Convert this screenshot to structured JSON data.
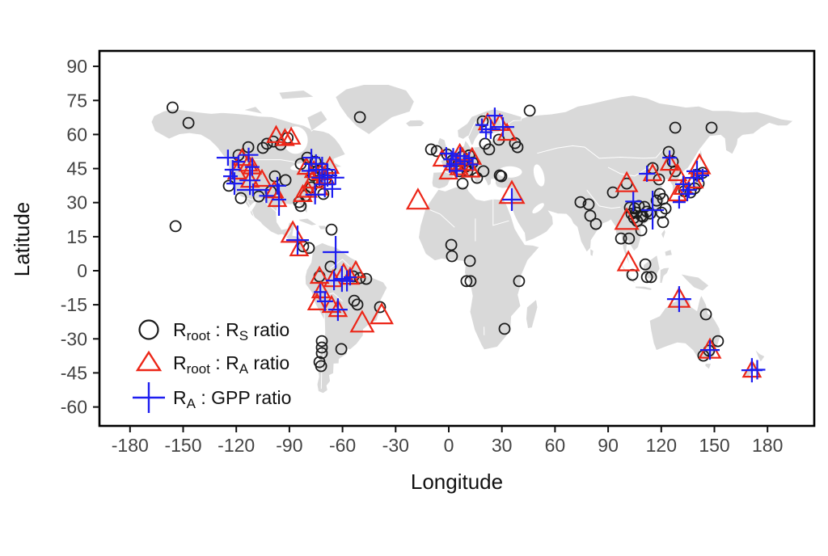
{
  "figure": {
    "background": "#ffffff",
    "land_color": "#d9d9d9",
    "coast_color": "#ffffff",
    "frame_color": "#000000"
  },
  "chart_data": {
    "type": "scatter",
    "subtype": "map-scatter",
    "title": "",
    "xlabel": "Longitude",
    "ylabel": "Latitude",
    "xlim": [
      -197,
      206
    ],
    "ylim": [
      -68.5,
      97
    ],
    "xticks": [
      -180,
      -150,
      -120,
      -90,
      -60,
      -30,
      0,
      30,
      60,
      90,
      120,
      150,
      180
    ],
    "yticks": [
      90,
      75,
      60,
      45,
      30,
      15,
      0,
      -15,
      -30,
      -45,
      -60
    ],
    "grid": false,
    "legend_position": "inside-bottom-left",
    "basemap": "world-continents",
    "series": [
      {
        "name": "Rroot : RS ratio",
        "marker": "circle",
        "color": "#1c1c1c",
        "label_parts": [
          {
            "t": "R"
          },
          {
            "t": "root",
            "sub": true
          },
          {
            "t": " : R"
          },
          {
            "t": "S",
            "sub": true
          },
          {
            "t": " ratio"
          }
        ],
        "points": [
          [
            -156,
            71.9
          ],
          [
            -147,
            65.1
          ],
          [
            -154.3,
            19.6
          ],
          [
            -50.2,
            67.6
          ],
          [
            45.7,
            70.5
          ],
          [
            127.9,
            63
          ],
          [
            148.4,
            63
          ],
          [
            -113.2,
            54.4
          ],
          [
            -105,
            54.1
          ],
          [
            -99.1,
            56.9
          ],
          [
            -102.7,
            55.9
          ],
          [
            -91,
            58.5
          ],
          [
            -118.7,
            50.9
          ],
          [
            -95,
            55.5
          ],
          [
            -124.2,
            37.4
          ],
          [
            -117.4,
            32
          ],
          [
            -107.3,
            32.7
          ],
          [
            -100.5,
            34.9
          ],
          [
            -98.2,
            41.6
          ],
          [
            -92.2,
            39.9
          ],
          [
            -84.5,
            30.2
          ],
          [
            -83.6,
            28.5
          ],
          [
            -83.6,
            47
          ],
          [
            -79.9,
            49.8
          ],
          [
            -75.3,
            48
          ],
          [
            -71.7,
            45.2
          ],
          [
            -68.5,
            42.7
          ],
          [
            -76.7,
            42
          ],
          [
            -73.1,
            39.1
          ],
          [
            -77.6,
            36.7
          ],
          [
            -70.8,
            33.8
          ],
          [
            -80.8,
            33.1
          ],
          [
            -74,
            44
          ],
          [
            -69.5,
            40.5
          ],
          [
            -66.2,
            18.1
          ],
          [
            -82.2,
            10.7
          ],
          [
            -79,
            10
          ],
          [
            -66.7,
            1.8
          ],
          [
            -73,
            -2.5
          ],
          [
            -53.9,
            -2.5
          ],
          [
            -50.2,
            -3.2
          ],
          [
            -46.6,
            -3.6
          ],
          [
            -53.4,
            -13.2
          ],
          [
            -51.6,
            -14.9
          ],
          [
            -38.8,
            -16
          ],
          [
            -71.7,
            -31
          ],
          [
            -71.7,
            -33.8
          ],
          [
            -71.7,
            -36.3
          ],
          [
            -60.7,
            -34.5
          ],
          [
            -73,
            -40.2
          ],
          [
            -72.1,
            -42
          ],
          [
            1.4,
            11.4
          ],
          [
            1.8,
            6.4
          ],
          [
            11.9,
            4.3
          ],
          [
            10,
            -4.6
          ],
          [
            12.3,
            -4.6
          ],
          [
            39.7,
            -4.6
          ],
          [
            31.5,
            -25.6
          ],
          [
            -10,
            53.4
          ],
          [
            -6.8,
            52.7
          ],
          [
            -0.9,
            51.2
          ],
          [
            2,
            48.5
          ],
          [
            5.5,
            47
          ],
          [
            7.5,
            50.3
          ],
          [
            9.5,
            45.8
          ],
          [
            11.5,
            50.8
          ],
          [
            13.5,
            47.6
          ],
          [
            6,
            43.8
          ],
          [
            10.5,
            43.9
          ],
          [
            7.8,
            38.4
          ],
          [
            16,
            40.9
          ],
          [
            19.6,
            43.8
          ],
          [
            28.8,
            42
          ],
          [
            29.7,
            41.6
          ],
          [
            19.2,
            65.8
          ],
          [
            20.5,
            55.9
          ],
          [
            22.8,
            53.4
          ],
          [
            28.3,
            57.7
          ],
          [
            37.4,
            56.2
          ],
          [
            38.8,
            54.4
          ],
          [
            74.4,
            30.2
          ],
          [
            79,
            29.2
          ],
          [
            79.9,
            24.2
          ],
          [
            83.1,
            20.6
          ],
          [
            92.7,
            34.5
          ],
          [
            100.5,
            38.4
          ],
          [
            107.3,
            28.5
          ],
          [
            105,
            27.4
          ],
          [
            103.2,
            25.1
          ],
          [
            106,
            25.6
          ],
          [
            108.7,
            24.2
          ],
          [
            104.6,
            23.3
          ],
          [
            102.3,
            27.8
          ],
          [
            109.6,
            23.8
          ],
          [
            111.9,
            26
          ],
          [
            106.4,
            21.9
          ],
          [
            113.8,
            25.2
          ],
          [
            110.5,
            28.1
          ],
          [
            97.3,
            14.2
          ],
          [
            101.8,
            14.2
          ],
          [
            108.7,
            17.8
          ],
          [
            103.7,
            -1.8
          ],
          [
            111,
            2.8
          ],
          [
            111.9,
            -2.8
          ],
          [
            114.2,
            -2.8
          ],
          [
            124.2,
            52.3
          ],
          [
            126.5,
            48
          ],
          [
            127.9,
            43.8
          ],
          [
            115.1,
            45.2
          ],
          [
            118.7,
            40.2
          ],
          [
            119.2,
            33.8
          ],
          [
            121,
            31.6
          ],
          [
            117.4,
            30.9
          ],
          [
            122.4,
            27.4
          ],
          [
            120.1,
            25.6
          ],
          [
            121,
            21.4
          ],
          [
            133,
            35
          ],
          [
            136.5,
            34.5
          ],
          [
            138.8,
            36.3
          ],
          [
            141.1,
            38.4
          ],
          [
            140.2,
            42.3
          ],
          [
            143.4,
            43.1
          ],
          [
            145.2,
            -19.2
          ],
          [
            152,
            -31
          ],
          [
            143.8,
            -37.4
          ],
          [
            147,
            -35.2
          ]
        ]
      },
      {
        "name": "Rroot : RA ratio",
        "marker": "triangle",
        "color": "#ec2618",
        "label_parts": [
          {
            "t": "R"
          },
          {
            "t": "root",
            "sub": true
          },
          {
            "t": " : R"
          },
          {
            "t": "A",
            "sub": true
          },
          {
            "t": " ratio"
          }
        ],
        "points": [
          [
            -97.5,
            59.5
          ],
          [
            -92.5,
            58.2
          ],
          [
            -89,
            58.8
          ],
          [
            -116.7,
            49.4
          ],
          [
            -113.2,
            46.9
          ],
          [
            -111,
            45.7
          ],
          [
            -119.6,
            43.4
          ],
          [
            -112.3,
            39.8
          ],
          [
            -105.5,
            40.2
          ],
          [
            -98.6,
            35.2
          ],
          [
            -96.8,
            31.3
          ],
          [
            -80.4,
            45.5
          ],
          [
            -76.2,
            44.1
          ],
          [
            -72.2,
            43.1
          ],
          [
            -69.9,
            41.3
          ],
          [
            -77.2,
            39.5
          ],
          [
            -73.5,
            36.4
          ],
          [
            -67.2,
            45.9
          ],
          [
            -79.7,
            35.4
          ],
          [
            -82.4,
            33.5
          ],
          [
            -88.1,
            16.4,
            1.3
          ],
          [
            -84.5,
            9.6
          ],
          [
            -73,
            -2.5
          ],
          [
            -65.3,
            -4
          ],
          [
            -59.4,
            -1.1
          ],
          [
            -52.5,
            0
          ],
          [
            -55.7,
            -2.9
          ],
          [
            -72.1,
            -8.9
          ],
          [
            -74.4,
            -14.2
          ],
          [
            -66.2,
            -15.3
          ],
          [
            -62.6,
            -17.1
          ],
          [
            -48.9,
            -23.1,
            1.3
          ],
          [
            -37.9,
            -19.6,
            1.25
          ],
          [
            -17.4,
            30.9,
            1.25
          ],
          [
            -3.7,
            49.1
          ],
          [
            -0.2,
            43.4
          ],
          [
            2.8,
            47.4
          ],
          [
            5.8,
            45.3
          ],
          [
            7.8,
            49.8
          ],
          [
            10.6,
            47.2
          ],
          [
            6.2,
            51.6
          ],
          [
            13.2,
            49.9
          ],
          [
            12.4,
            44.3
          ],
          [
            21.9,
            65.1
          ],
          [
            28.8,
            64.8
          ],
          [
            32.9,
            60.5
          ],
          [
            35.6,
            33.8,
            1.4
          ],
          [
            100.5,
            38.4,
            1.2
          ],
          [
            100.5,
            22.1,
            1.3
          ],
          [
            101.4,
            3.6,
            1.2
          ],
          [
            124.7,
            47.3
          ],
          [
            141.6,
            46.3,
            1.2
          ],
          [
            129.2,
            42.7
          ],
          [
            132.4,
            36.7
          ],
          [
            129.2,
            33.8
          ],
          [
            138.4,
            39.5
          ],
          [
            115.1,
            42.7
          ],
          [
            130.1,
            -12.5,
            1.2
          ],
          [
            147.5,
            -34.9,
            1.2
          ],
          [
            171.2,
            -43.8
          ]
        ]
      },
      {
        "name": "RA : GPP ratio",
        "marker": "plus",
        "color": "#1d1df0",
        "label_parts": [
          {
            "t": "R"
          },
          {
            "t": "A",
            "sub": true
          },
          {
            "t": " : GPP ratio"
          }
        ],
        "points": [
          [
            -124.7,
            49.8,
            14,
            10
          ],
          [
            -122,
            44.5,
            10,
            12
          ],
          [
            -123.3,
            41.6,
            9,
            9
          ],
          [
            -121,
            38.4,
            10,
            14
          ],
          [
            -118.7,
            48,
            8,
            8
          ],
          [
            -113,
            51,
            12,
            9
          ],
          [
            -111,
            45.7,
            9,
            11
          ],
          [
            -112.3,
            39.8,
            13,
            18
          ],
          [
            -110.5,
            35.6,
            20,
            8
          ],
          [
            -96.8,
            37.4,
            11,
            11
          ],
          [
            -95.9,
            31.3,
            9,
            20
          ],
          [
            -103,
            33,
            9,
            9
          ],
          [
            -77.6,
            49.8,
            11,
            11
          ],
          [
            -75,
            47,
            15,
            12
          ],
          [
            -71.5,
            44.5,
            16,
            16
          ],
          [
            -68.5,
            42,
            12,
            14
          ],
          [
            -73,
            41,
            10,
            10
          ],
          [
            -70,
            38,
            13,
            16
          ],
          [
            -65.8,
            36,
            11,
            11
          ],
          [
            -75.5,
            33.5,
            12,
            12
          ],
          [
            -64,
            41,
            11,
            9
          ],
          [
            -79,
            44,
            9,
            9
          ],
          [
            -85.4,
            13.5,
            14,
            18
          ],
          [
            -63.9,
            8.2,
            16,
            20
          ],
          [
            -64.8,
            -4.3,
            10,
            12
          ],
          [
            -60.3,
            -3.6,
            11,
            16
          ],
          [
            -57.5,
            -4.5,
            9,
            13
          ],
          [
            -55.7,
            -2.9,
            8,
            10
          ],
          [
            -69.9,
            -13.5,
            10,
            12
          ],
          [
            -62.6,
            -17.1,
            12,
            14
          ],
          [
            -72.5,
            -9.4,
            8,
            10
          ],
          [
            -1.4,
            51.6,
            8,
            8
          ],
          [
            1.5,
            49,
            10,
            10
          ],
          [
            4,
            47,
            12,
            12
          ],
          [
            6.5,
            50.5,
            11,
            11
          ],
          [
            9,
            48.2,
            10,
            10
          ],
          [
            11.5,
            49.5,
            8,
            8
          ],
          [
            4.5,
            44,
            8,
            8
          ],
          [
            13.5,
            46.8,
            7,
            7
          ],
          [
            2.5,
            51.5,
            7,
            7
          ],
          [
            0.5,
            46,
            8,
            8
          ],
          [
            23.7,
            62.3,
            12,
            12
          ],
          [
            30.6,
            63.3,
            14,
            12
          ],
          [
            26,
            68.3,
            10,
            10
          ],
          [
            18.7,
            64.2,
            8,
            8
          ],
          [
            21,
            61,
            8,
            8
          ],
          [
            35.6,
            31.3,
            12,
            14
          ],
          [
            115.1,
            26.7,
            14,
            24
          ],
          [
            111.9,
            42.7,
            10,
            10
          ],
          [
            104.2,
            30.5,
            10,
            12
          ],
          [
            140.2,
            43.8,
            13,
            13
          ],
          [
            138.4,
            40.9,
            11,
            11
          ],
          [
            132.4,
            38.1,
            10,
            10
          ],
          [
            135.6,
            35.6,
            10,
            10
          ],
          [
            134.7,
            33.8,
            9,
            9
          ],
          [
            130.1,
            30.2,
            8,
            8
          ],
          [
            124.7,
            49.8,
            9,
            9
          ],
          [
            143.4,
            42,
            8,
            8
          ],
          [
            130.1,
            -12.5,
            15,
            16
          ],
          [
            147.5,
            -34.9,
            12,
            12
          ],
          [
            171.2,
            -43.8,
            13,
            15
          ],
          [
            174.2,
            -43.6,
            10,
            12
          ]
        ]
      }
    ]
  }
}
